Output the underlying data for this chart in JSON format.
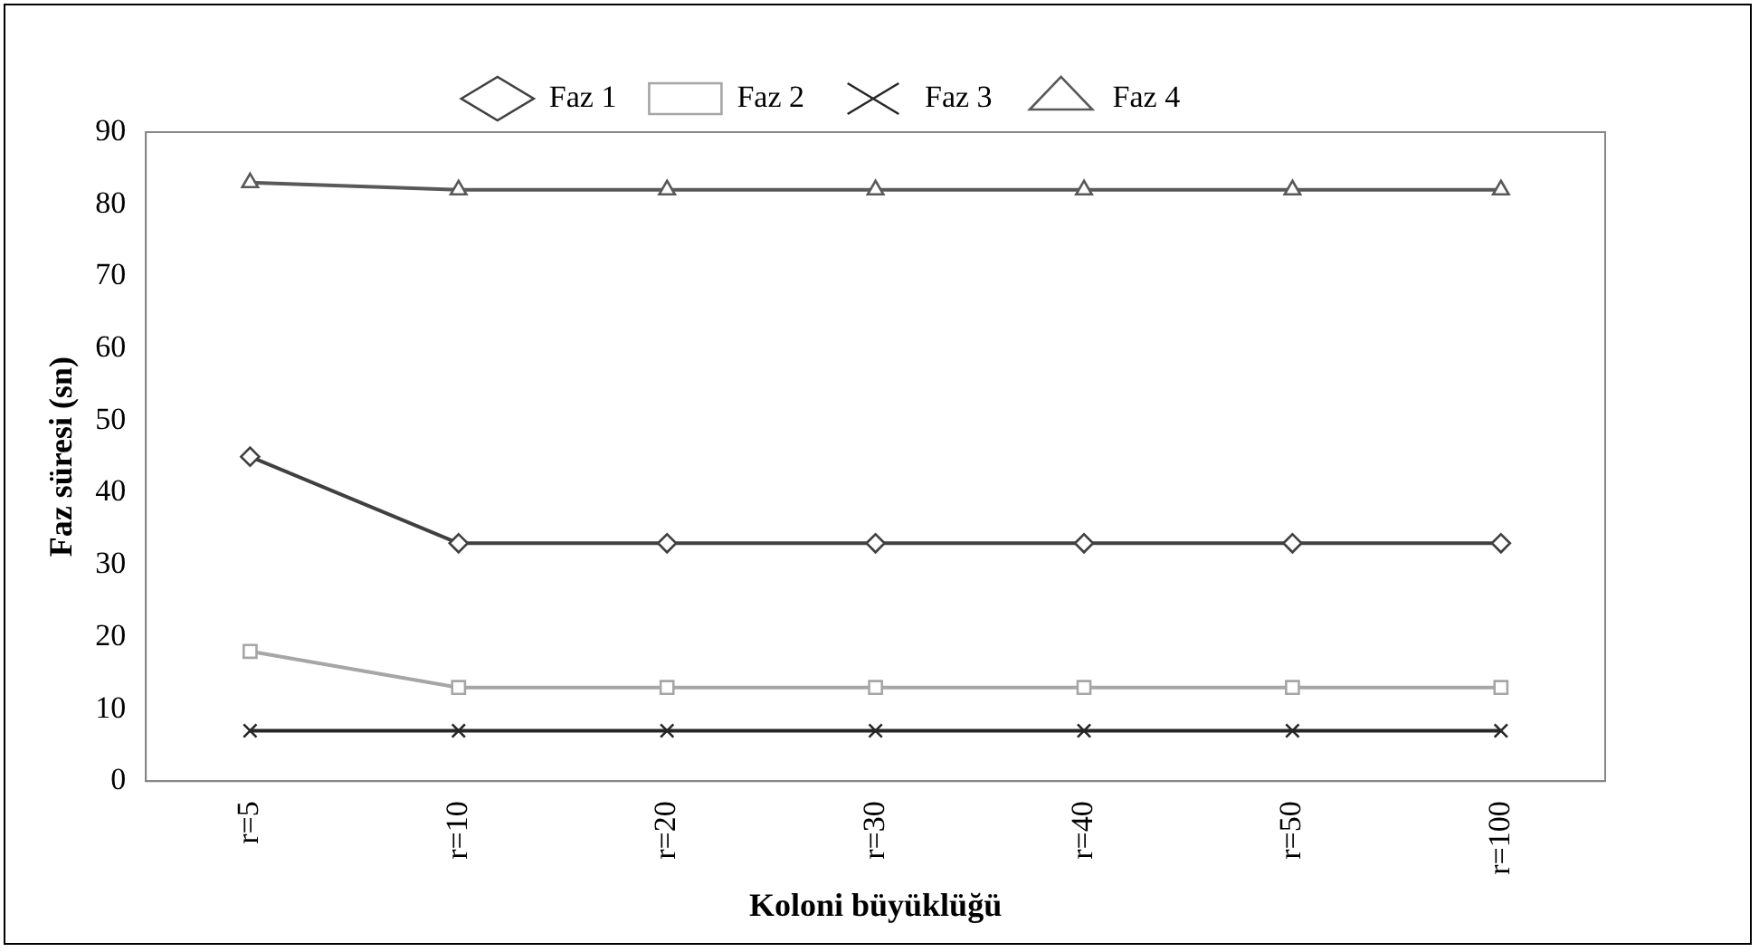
{
  "chart_data": {
    "type": "line",
    "xlabel": "Koloni büyüklüğü",
    "ylabel": "Faz süresi (sn)",
    "categories": [
      "r=5",
      "r=10",
      "r=20",
      "r=30",
      "r=40",
      "r=50",
      "r=100"
    ],
    "series": [
      {
        "name": "Faz 1",
        "color": "#404040",
        "marker": "diamond",
        "values": [
          45,
          33,
          33,
          33,
          33,
          33,
          33
        ]
      },
      {
        "name": "Faz 2",
        "color": "#a6a6a6",
        "marker": "square",
        "values": [
          18,
          13,
          13,
          13,
          13,
          13,
          13
        ]
      },
      {
        "name": "Faz 3",
        "color": "#262626",
        "marker": "cross",
        "values": [
          7,
          7,
          7,
          7,
          7,
          7,
          7
        ]
      },
      {
        "name": "Faz 4",
        "color": "#595959",
        "marker": "triangle",
        "values": [
          83,
          82,
          82,
          82,
          82,
          82,
          82
        ]
      }
    ],
    "ylim": [
      0,
      90
    ],
    "yticks": [
      0,
      10,
      20,
      30,
      40,
      50,
      60,
      70,
      80,
      90
    ],
    "grid": false,
    "legend": "top"
  }
}
